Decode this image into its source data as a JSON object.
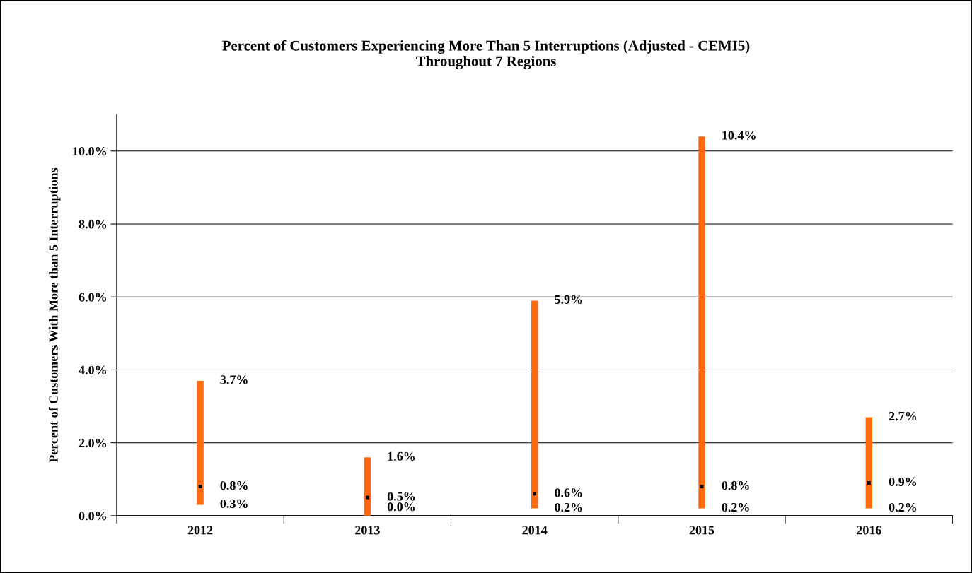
{
  "chart_data": {
    "type": "bar",
    "title": "Percent of Customers Experiencing More Than 5 Interruptions (Adjusted - CEMI5)\nThroughout 7 Regions",
    "ylabel": "Percent of Customers With More than 5 Interruptions",
    "categories": [
      "2012",
      "2013",
      "2014",
      "2015",
      "2016"
    ],
    "series": [
      {
        "color": "#ff6a10",
        "base": [
          0.3,
          0.0,
          0.2,
          0.2,
          0.2
        ],
        "values": [
          3.4,
          1.6,
          5.7,
          10.2,
          2.5
        ]
      },
      {
        "type": "scatter",
        "marker": "square",
        "color": "#000000",
        "values": [
          0.8,
          0.5,
          0.6,
          0.8,
          0.9
        ]
      }
    ],
    "ylim": [
      0,
      11
    ],
    "yticks": [
      {
        "value": 0,
        "label": "0.0%"
      },
      {
        "value": 2,
        "label": "2.0%"
      },
      {
        "value": 4,
        "label": "4.0%"
      },
      {
        "value": 6,
        "label": "6.0%"
      },
      {
        "value": 8,
        "label": "8.0%"
      },
      {
        "value": 10,
        "label": "10.0%"
      }
    ],
    "grid": "y",
    "annotations": [
      {
        "text": "3.7%",
        "x": "2012",
        "y": 3.7
      },
      {
        "text": "0.8%",
        "x": "2012",
        "y": 0.8
      },
      {
        "text": "0.3%",
        "x": "2012",
        "y": 0.3
      },
      {
        "text": "1.6%",
        "x": "2013",
        "y": 1.6
      },
      {
        "text": "0.5%",
        "x": "2013",
        "y": 0.5
      },
      {
        "text": "0.0%",
        "x": "2013",
        "y": 0.0
      },
      {
        "text": "5.9%",
        "x": "2014",
        "y": 5.9
      },
      {
        "text": "0.6%",
        "x": "2014",
        "y": 0.6
      },
      {
        "text": "0.2%",
        "x": "2014",
        "y": 0.2
      },
      {
        "text": "10.4%",
        "x": "2015",
        "y": 10.4
      },
      {
        "text": "0.8%",
        "x": "2015",
        "y": 0.8
      },
      {
        "text": "0.2%",
        "x": "2015",
        "y": 0.2
      },
      {
        "text": "2.7%",
        "x": "2016",
        "y": 2.7
      },
      {
        "text": "0.9%",
        "x": "2016",
        "y": 0.9
      },
      {
        "text": "0.2%",
        "x": "2016",
        "y": 0.2
      }
    ]
  }
}
